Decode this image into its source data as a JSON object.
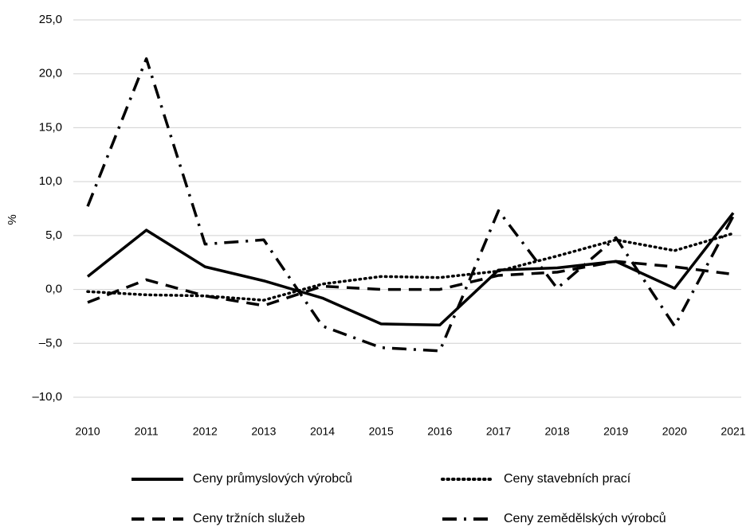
{
  "chart_data": {
    "type": "line",
    "y_label": "%",
    "categories": [
      "2010",
      "2011",
      "2012",
      "2013",
      "2014",
      "2015",
      "2016",
      "2017",
      "2018",
      "2019",
      "2020",
      "2021"
    ],
    "series": [
      {
        "name": "Ceny průmyslových výrobců",
        "color": "#000000",
        "dash": "solid",
        "values": [
          1.2,
          5.5,
          2.1,
          0.8,
          -0.8,
          -3.2,
          -3.3,
          1.8,
          2.0,
          2.6,
          0.1,
          7.1
        ]
      },
      {
        "name": "Ceny stavebních prací",
        "color": "#000000",
        "dash": "dotted",
        "values": [
          -0.2,
          -0.5,
          -0.6,
          -1.0,
          0.5,
          1.2,
          1.1,
          1.7,
          3.1,
          4.6,
          3.6,
          5.2
        ]
      },
      {
        "name": "Ceny tržních služeb",
        "color": "#000000",
        "dash": "dashed",
        "values": [
          -1.2,
          0.9,
          -0.6,
          -1.5,
          0.3,
          0.0,
          0.0,
          1.3,
          1.6,
          2.6,
          2.1,
          1.4
        ]
      },
      {
        "name": "Ceny zemědělských výrobců",
        "color": "#000000",
        "dash": "dashdot",
        "values": [
          7.7,
          21.4,
          4.2,
          4.6,
          -3.4,
          -5.4,
          -5.7,
          7.3,
          0.1,
          4.8,
          -3.4,
          6.8
        ]
      }
    ],
    "ylim": [
      -10,
      25
    ],
    "yticks": [
      {
        "value": -10,
        "label": "–10,0"
      },
      {
        "value": -5,
        "label": "–5,0"
      },
      {
        "value": 0,
        "label": "0,0"
      },
      {
        "value": 5,
        "label": "5,0"
      },
      {
        "value": 10,
        "label": "10,0"
      },
      {
        "value": 15,
        "label": "15,0"
      },
      {
        "value": 20,
        "label": "20,0"
      },
      {
        "value": 25,
        "label": "25,0"
      }
    ],
    "grid": true
  }
}
